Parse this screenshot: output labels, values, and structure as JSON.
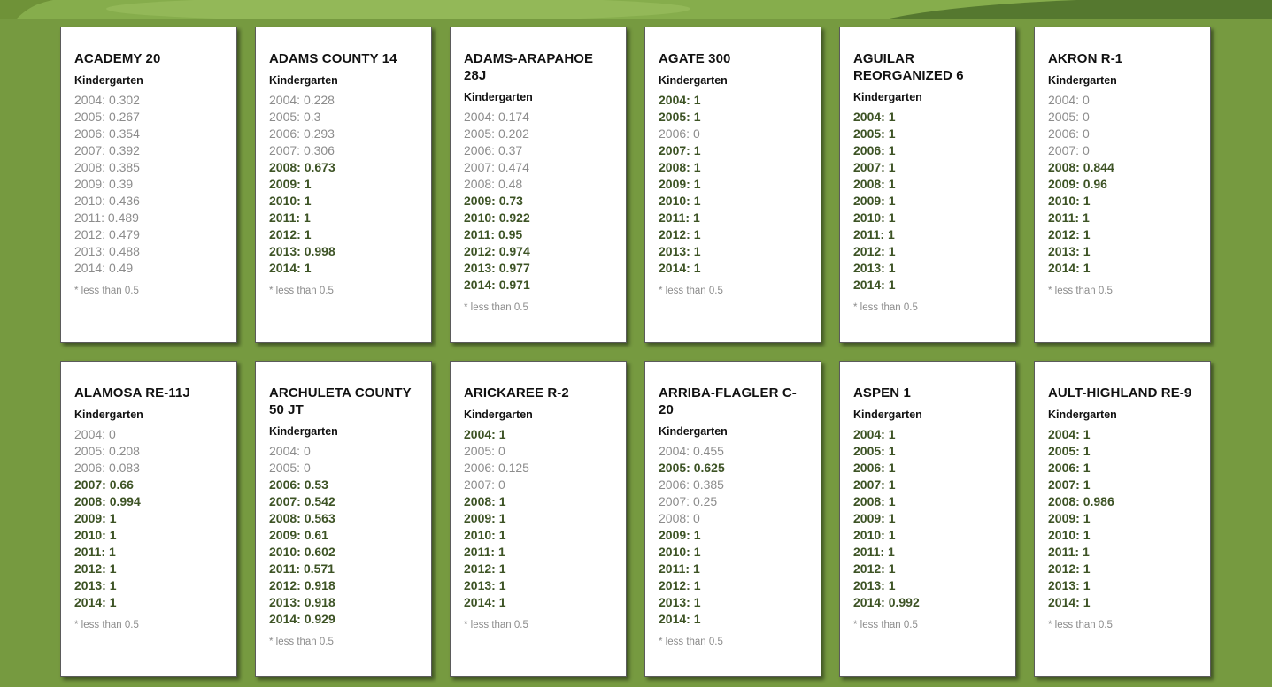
{
  "colors": {
    "background": "#769a40",
    "high": "#3d5325",
    "low": "#8c8c8c"
  },
  "threshold": 0.5,
  "districts": [
    {
      "name": "ACADEMY 20",
      "grade": "Kindergarten",
      "note": "* less than 0.5",
      "rates": [
        {
          "year": "2004",
          "value": "0.302"
        },
        {
          "year": "2005",
          "value": "0.267"
        },
        {
          "year": "2006",
          "value": "0.354"
        },
        {
          "year": "2007",
          "value": "0.392"
        },
        {
          "year": "2008",
          "value": "0.385"
        },
        {
          "year": "2009",
          "value": "0.39"
        },
        {
          "year": "2010",
          "value": "0.436"
        },
        {
          "year": "2011",
          "value": "0.489"
        },
        {
          "year": "2012",
          "value": "0.479"
        },
        {
          "year": "2013",
          "value": "0.488"
        },
        {
          "year": "2014",
          "value": "0.49"
        }
      ]
    },
    {
      "name": "ADAMS COUNTY 14",
      "grade": "Kindergarten",
      "note": "* less than 0.5",
      "rates": [
        {
          "year": "2004",
          "value": "0.228"
        },
        {
          "year": "2005",
          "value": "0.3"
        },
        {
          "year": "2006",
          "value": "0.293"
        },
        {
          "year": "2007",
          "value": "0.306"
        },
        {
          "year": "2008",
          "value": "0.673"
        },
        {
          "year": "2009",
          "value": "1"
        },
        {
          "year": "2010",
          "value": "1"
        },
        {
          "year": "2011",
          "value": "1"
        },
        {
          "year": "2012",
          "value": "1"
        },
        {
          "year": "2013",
          "value": "0.998"
        },
        {
          "year": "2014",
          "value": "1"
        }
      ]
    },
    {
      "name": "ADAMS-ARAPAHOE 28J",
      "grade": "Kindergarten",
      "note": "* less than 0.5",
      "rates": [
        {
          "year": "2004",
          "value": "0.174"
        },
        {
          "year": "2005",
          "value": "0.202"
        },
        {
          "year": "2006",
          "value": "0.37"
        },
        {
          "year": "2007",
          "value": "0.474"
        },
        {
          "year": "2008",
          "value": "0.48"
        },
        {
          "year": "2009",
          "value": "0.73"
        },
        {
          "year": "2010",
          "value": "0.922"
        },
        {
          "year": "2011",
          "value": "0.95"
        },
        {
          "year": "2012",
          "value": "0.974"
        },
        {
          "year": "2013",
          "value": "0.977"
        },
        {
          "year": "2014",
          "value": "0.971"
        }
      ]
    },
    {
      "name": "AGATE 300",
      "grade": "Kindergarten",
      "note": "* less than 0.5",
      "rates": [
        {
          "year": "2004",
          "value": "1"
        },
        {
          "year": "2005",
          "value": "1"
        },
        {
          "year": "2006",
          "value": "0"
        },
        {
          "year": "2007",
          "value": "1"
        },
        {
          "year": "2008",
          "value": "1"
        },
        {
          "year": "2009",
          "value": "1"
        },
        {
          "year": "2010",
          "value": "1"
        },
        {
          "year": "2011",
          "value": "1"
        },
        {
          "year": "2012",
          "value": "1"
        },
        {
          "year": "2013",
          "value": "1"
        },
        {
          "year": "2014",
          "value": "1"
        }
      ]
    },
    {
      "name": "AGUILAR REORGANIZED 6",
      "grade": "Kindergarten",
      "note": "* less than 0.5",
      "rates": [
        {
          "year": "2004",
          "value": "1"
        },
        {
          "year": "2005",
          "value": "1"
        },
        {
          "year": "2006",
          "value": "1"
        },
        {
          "year": "2007",
          "value": "1"
        },
        {
          "year": "2008",
          "value": "1"
        },
        {
          "year": "2009",
          "value": "1"
        },
        {
          "year": "2010",
          "value": "1"
        },
        {
          "year": "2011",
          "value": "1"
        },
        {
          "year": "2012",
          "value": "1"
        },
        {
          "year": "2013",
          "value": "1"
        },
        {
          "year": "2014",
          "value": "1"
        }
      ]
    },
    {
      "name": "AKRON R-1",
      "grade": "Kindergarten",
      "note": "* less than 0.5",
      "rates": [
        {
          "year": "2004",
          "value": "0"
        },
        {
          "year": "2005",
          "value": "0"
        },
        {
          "year": "2006",
          "value": "0"
        },
        {
          "year": "2007",
          "value": "0"
        },
        {
          "year": "2008",
          "value": "0.844"
        },
        {
          "year": "2009",
          "value": "0.96"
        },
        {
          "year": "2010",
          "value": "1"
        },
        {
          "year": "2011",
          "value": "1"
        },
        {
          "year": "2012",
          "value": "1"
        },
        {
          "year": "2013",
          "value": "1"
        },
        {
          "year": "2014",
          "value": "1"
        }
      ]
    },
    {
      "name": "ALAMOSA RE-11J",
      "grade": "Kindergarten",
      "note": "* less than 0.5",
      "rates": [
        {
          "year": "2004",
          "value": "0"
        },
        {
          "year": "2005",
          "value": "0.208"
        },
        {
          "year": "2006",
          "value": "0.083"
        },
        {
          "year": "2007",
          "value": "0.66"
        },
        {
          "year": "2008",
          "value": "0.994"
        },
        {
          "year": "2009",
          "value": "1"
        },
        {
          "year": "2010",
          "value": "1"
        },
        {
          "year": "2011",
          "value": "1"
        },
        {
          "year": "2012",
          "value": "1"
        },
        {
          "year": "2013",
          "value": "1"
        },
        {
          "year": "2014",
          "value": "1"
        }
      ]
    },
    {
      "name": "ARCHULETA COUNTY 50 JT",
      "grade": "Kindergarten",
      "note": "* less than 0.5",
      "rates": [
        {
          "year": "2004",
          "value": "0"
        },
        {
          "year": "2005",
          "value": "0"
        },
        {
          "year": "2006",
          "value": "0.53"
        },
        {
          "year": "2007",
          "value": "0.542"
        },
        {
          "year": "2008",
          "value": "0.563"
        },
        {
          "year": "2009",
          "value": "0.61"
        },
        {
          "year": "2010",
          "value": "0.602"
        },
        {
          "year": "2011",
          "value": "0.571"
        },
        {
          "year": "2012",
          "value": "0.918"
        },
        {
          "year": "2013",
          "value": "0.918"
        },
        {
          "year": "2014",
          "value": "0.929"
        }
      ]
    },
    {
      "name": "ARICKAREE R-2",
      "grade": "Kindergarten",
      "note": "* less than 0.5",
      "rates": [
        {
          "year": "2004",
          "value": "1"
        },
        {
          "year": "2005",
          "value": "0"
        },
        {
          "year": "2006",
          "value": "0.125"
        },
        {
          "year": "2007",
          "value": "0"
        },
        {
          "year": "2008",
          "value": "1"
        },
        {
          "year": "2009",
          "value": "1"
        },
        {
          "year": "2010",
          "value": "1"
        },
        {
          "year": "2011",
          "value": "1"
        },
        {
          "year": "2012",
          "value": "1"
        },
        {
          "year": "2013",
          "value": "1"
        },
        {
          "year": "2014",
          "value": "1"
        }
      ]
    },
    {
      "name": "ARRIBA-FLAGLER C-20",
      "grade": "Kindergarten",
      "note": "* less than 0.5",
      "rates": [
        {
          "year": "2004",
          "value": "0.455"
        },
        {
          "year": "2005",
          "value": "0.625"
        },
        {
          "year": "2006",
          "value": "0.385"
        },
        {
          "year": "2007",
          "value": "0.25"
        },
        {
          "year": "2008",
          "value": "0"
        },
        {
          "year": "2009",
          "value": "1"
        },
        {
          "year": "2010",
          "value": "1"
        },
        {
          "year": "2011",
          "value": "1"
        },
        {
          "year": "2012",
          "value": "1"
        },
        {
          "year": "2013",
          "value": "1"
        },
        {
          "year": "2014",
          "value": "1"
        }
      ]
    },
    {
      "name": "ASPEN 1",
      "grade": "Kindergarten",
      "note": "* less than 0.5",
      "rates": [
        {
          "year": "2004",
          "value": "1"
        },
        {
          "year": "2005",
          "value": "1"
        },
        {
          "year": "2006",
          "value": "1"
        },
        {
          "year": "2007",
          "value": "1"
        },
        {
          "year": "2008",
          "value": "1"
        },
        {
          "year": "2009",
          "value": "1"
        },
        {
          "year": "2010",
          "value": "1"
        },
        {
          "year": "2011",
          "value": "1"
        },
        {
          "year": "2012",
          "value": "1"
        },
        {
          "year": "2013",
          "value": "1"
        },
        {
          "year": "2014",
          "value": "0.992"
        }
      ]
    },
    {
      "name": "AULT-HIGHLAND RE-9",
      "grade": "Kindergarten",
      "note": "* less than 0.5",
      "rates": [
        {
          "year": "2004",
          "value": "1"
        },
        {
          "year": "2005",
          "value": "1"
        },
        {
          "year": "2006",
          "value": "1"
        },
        {
          "year": "2007",
          "value": "1"
        },
        {
          "year": "2008",
          "value": "0.986"
        },
        {
          "year": "2009",
          "value": "1"
        },
        {
          "year": "2010",
          "value": "1"
        },
        {
          "year": "2011",
          "value": "1"
        },
        {
          "year": "2012",
          "value": "1"
        },
        {
          "year": "2013",
          "value": "1"
        },
        {
          "year": "2014",
          "value": "1"
        }
      ]
    }
  ]
}
